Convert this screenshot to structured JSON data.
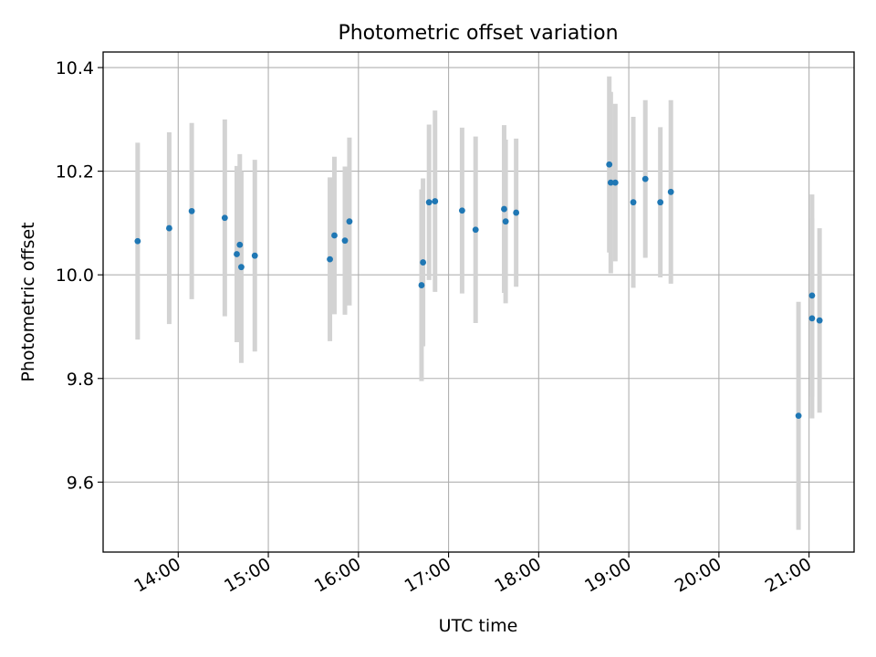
{
  "chart_data": {
    "type": "scatter",
    "title": "Photometric offset variation",
    "xlabel": "UTC time",
    "ylabel": "Photometric offset",
    "grid": true,
    "xlim": [
      "13:10",
      "21:30"
    ],
    "ylim": [
      9.465,
      10.43
    ],
    "xticks": [
      "14:00",
      "15:00",
      "16:00",
      "17:00",
      "18:00",
      "19:00",
      "20:00",
      "21:00"
    ],
    "yticks": [
      "9.6",
      "9.8",
      "10.0",
      "10.2",
      "10.4"
    ],
    "colors": {
      "point": "#1f77b4",
      "errorbar": "#d3d3d3",
      "grid": "#b0b0b0",
      "axes": "#000000"
    },
    "points": [
      {
        "x": "13:33",
        "y": 10.065,
        "err": 0.19
      },
      {
        "x": "13:54",
        "y": 10.09,
        "err": 0.185
      },
      {
        "x": "14:09",
        "y": 10.123,
        "err": 0.17
      },
      {
        "x": "14:31",
        "y": 10.11,
        "err": 0.19
      },
      {
        "x": "14:39",
        "y": 10.04,
        "err": 0.17
      },
      {
        "x": "14:41",
        "y": 10.058,
        "err": 0.175
      },
      {
        "x": "14:42",
        "y": 10.015,
        "err": 0.185
      },
      {
        "x": "14:51",
        "y": 10.037,
        "err": 0.185
      },
      {
        "x": "15:41",
        "y": 10.03,
        "err": 0.158
      },
      {
        "x": "15:44",
        "y": 10.076,
        "err": 0.152
      },
      {
        "x": "15:51",
        "y": 10.066,
        "err": 0.143
      },
      {
        "x": "15:54",
        "y": 10.103,
        "err": 0.162
      },
      {
        "x": "16:42",
        "y": 9.98,
        "err": 0.185
      },
      {
        "x": "16:43",
        "y": 10.024,
        "err": 0.162
      },
      {
        "x": "16:47",
        "y": 10.14,
        "err": 0.15
      },
      {
        "x": "16:51",
        "y": 10.142,
        "err": 0.175
      },
      {
        "x": "17:09",
        "y": 10.124,
        "err": 0.16
      },
      {
        "x": "17:18",
        "y": 10.087,
        "err": 0.18
      },
      {
        "x": "17:37",
        "y": 10.127,
        "err": 0.162
      },
      {
        "x": "17:38",
        "y": 10.103,
        "err": 0.158
      },
      {
        "x": "17:45",
        "y": 10.12,
        "err": 0.143
      },
      {
        "x": "18:47",
        "y": 10.213,
        "err": 0.17
      },
      {
        "x": "18:48",
        "y": 10.178,
        "err": 0.175
      },
      {
        "x": "18:51",
        "y": 10.178,
        "err": 0.152
      },
      {
        "x": "19:03",
        "y": 10.14,
        "err": 0.165
      },
      {
        "x": "19:11",
        "y": 10.185,
        "err": 0.152
      },
      {
        "x": "19:21",
        "y": 10.14,
        "err": 0.145
      },
      {
        "x": "19:28",
        "y": 10.16,
        "err": 0.177
      },
      {
        "x": "20:53",
        "y": 9.728,
        "err": 0.22
      },
      {
        "x": "21:02",
        "y": 9.96,
        "err": 0.195
      },
      {
        "x": "21:02",
        "y": 9.916,
        "err": 0.193
      },
      {
        "x": "21:07",
        "y": 9.912,
        "err": 0.178
      }
    ]
  }
}
